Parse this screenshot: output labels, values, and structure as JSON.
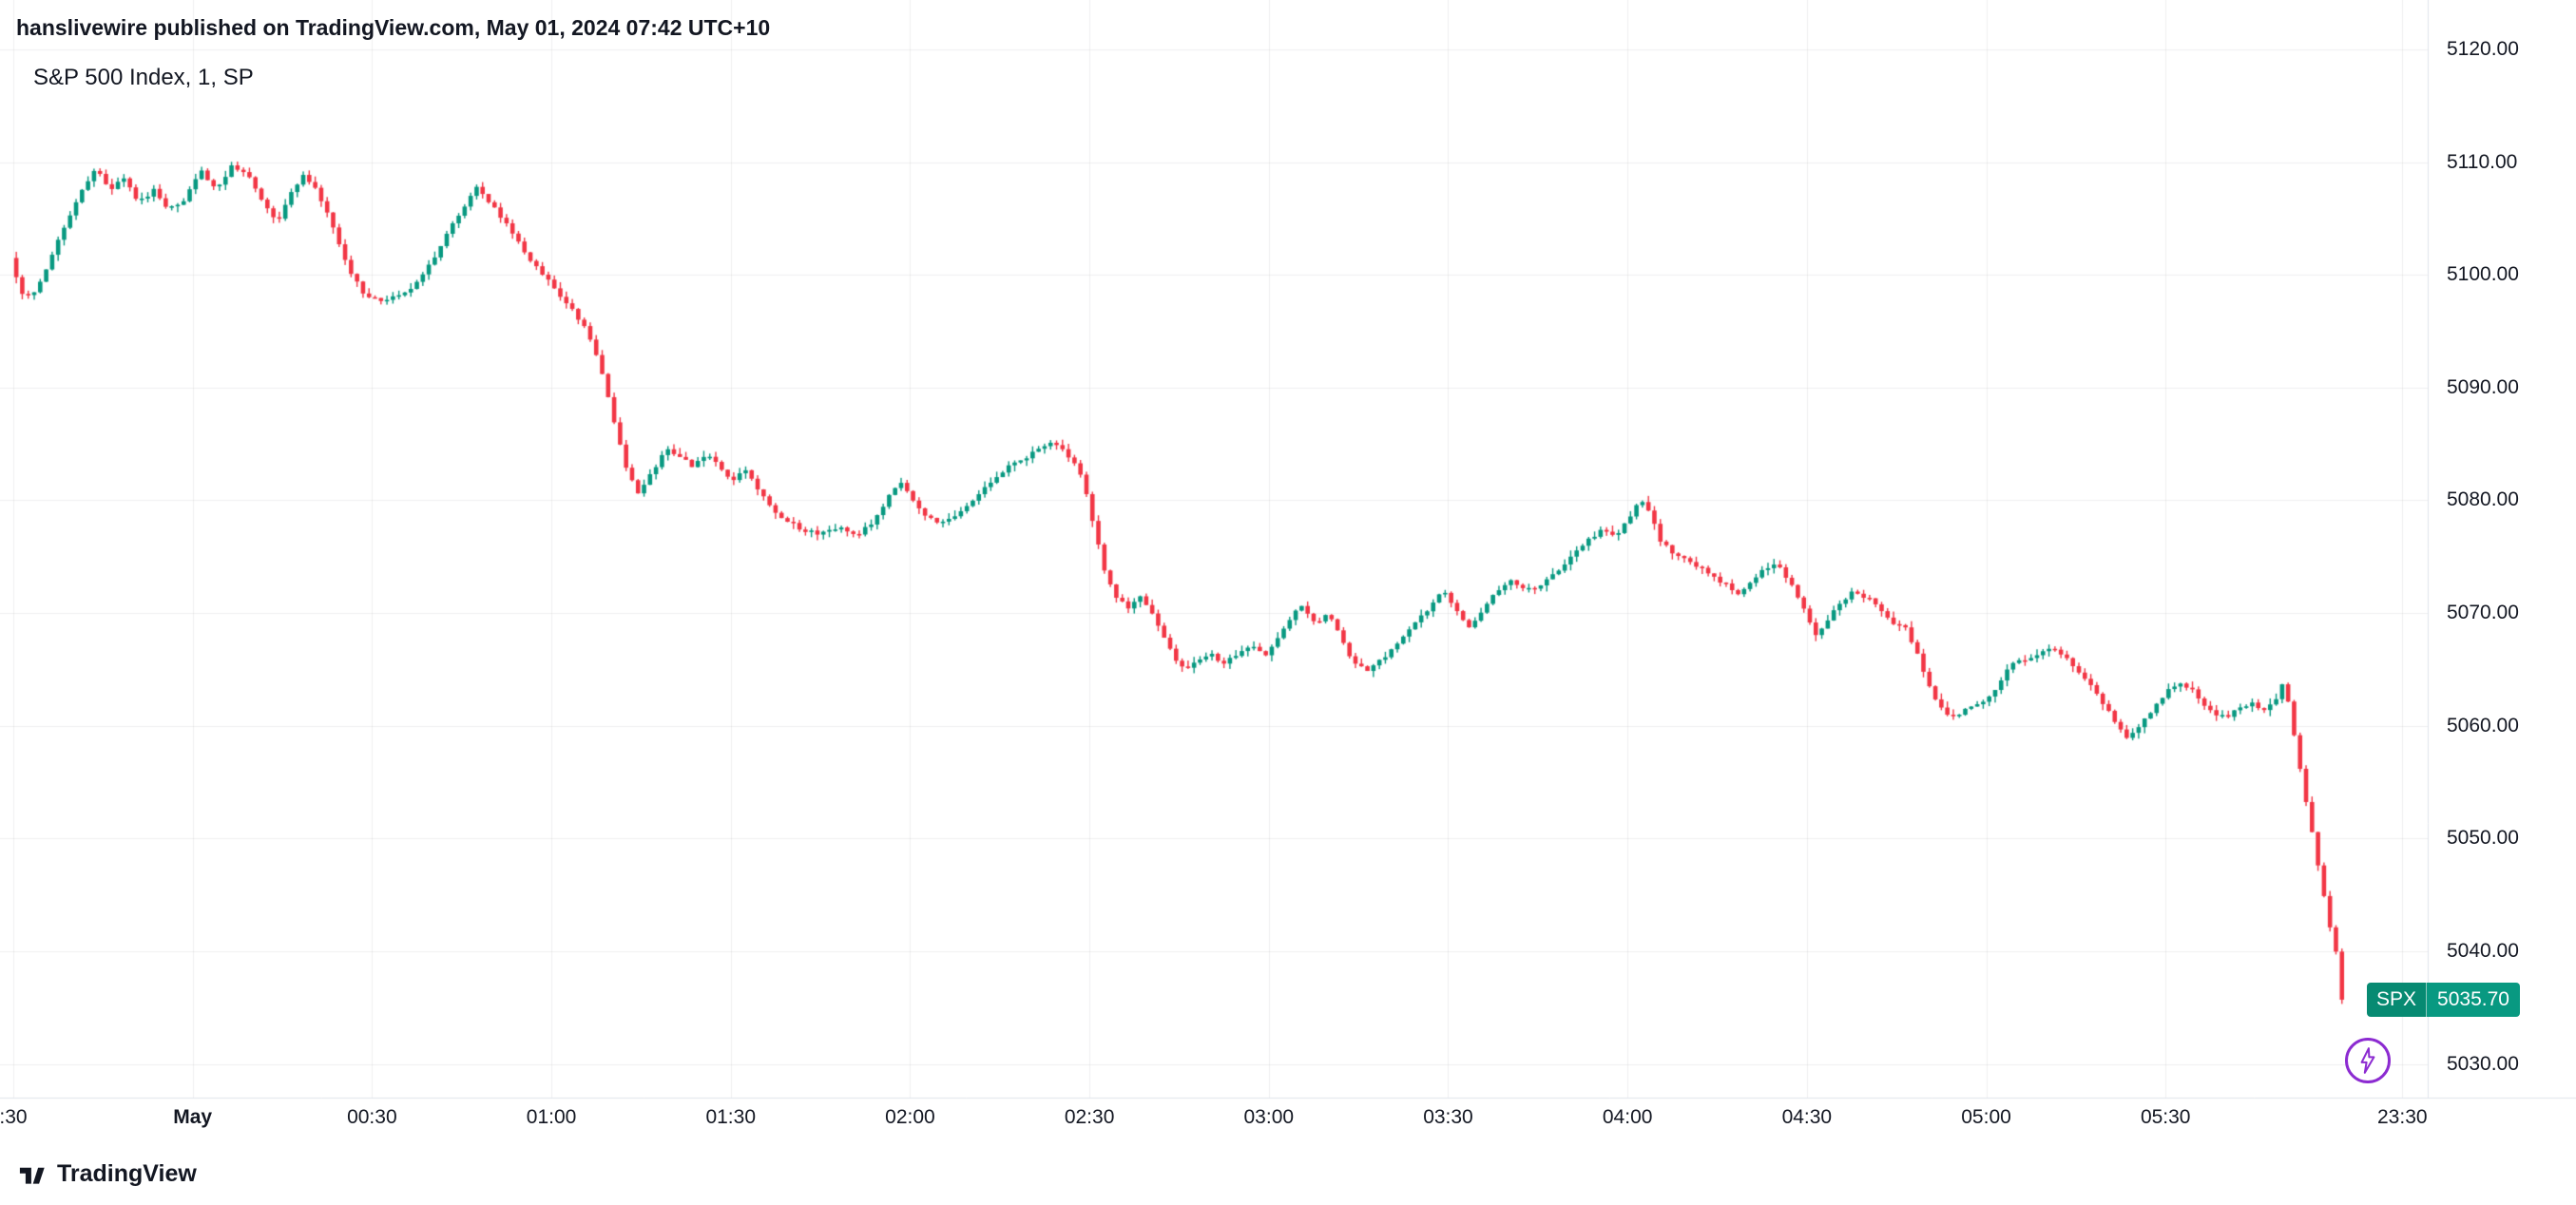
{
  "attribution": "hanslivewire published on TradingView.com, May 01, 2024 07:42 UTC+10",
  "symbol_title": "S&P 500 Index, 1, SP",
  "price_badge": {
    "symbol": "SPX",
    "price": "5035.70"
  },
  "footer": {
    "brand": "TradingView"
  },
  "colors": {
    "up": "#089981",
    "down": "#f23645",
    "badge_green": "#089981",
    "badge_symbol_bg": "#078a72",
    "accent_purple": "#8c2bd1",
    "grid": "rgba(42,46,57,0.07)",
    "axis_line": "#e0e3eb",
    "text": "#131722"
  },
  "chart_data": {
    "type": "candlestick",
    "title": "S&P 500 Index, 1, SP",
    "symbol": "SPX",
    "exchange": "SP",
    "interval_minutes": 1,
    "last_price": 5035.7,
    "last_price_label": "5035.70",
    "session": "23:30 to 06:00 UTC+10 (Apr 30 - May 01, 2024)",
    "grid": true,
    "y_axis": {
      "min": 5030,
      "max": 5120,
      "step": 10,
      "labels": [
        "5120.00",
        "5110.00",
        "5100.00",
        "5090.00",
        "5080.00",
        "5070.00",
        "5060.00",
        "5050.00",
        "5040.00",
        "5030.00"
      ]
    },
    "x_axis": {
      "labels": [
        {
          "text": ":30",
          "t": 0
        },
        {
          "text": "May",
          "t": 30,
          "bold": true
        },
        {
          "text": "00:30",
          "t": 60
        },
        {
          "text": "01:00",
          "t": 90
        },
        {
          "text": "01:30",
          "t": 120
        },
        {
          "text": "02:00",
          "t": 150
        },
        {
          "text": "02:30",
          "t": 180
        },
        {
          "text": "03:00",
          "t": 210
        },
        {
          "text": "03:30",
          "t": 240
        },
        {
          "text": "04:00",
          "t": 270
        },
        {
          "text": "04:30",
          "t": 300
        },
        {
          "text": "05:00",
          "t": 330
        },
        {
          "text": "05:30",
          "t": 360
        },
        {
          "text": "23:30",
          "t": 399.6
        }
      ]
    },
    "price_path": [
      [
        0,
        5101.5
      ],
      [
        1.7,
        5098.5
      ],
      [
        3.3,
        5098.0
      ],
      [
        5.5,
        5100.0
      ],
      [
        8.3,
        5103.5
      ],
      [
        11,
        5106.5
      ],
      [
        14.3,
        5109.6
      ],
      [
        16.5,
        5107.5
      ],
      [
        18.7,
        5108.8
      ],
      [
        21.5,
        5106.5
      ],
      [
        24,
        5107.5
      ],
      [
        26.2,
        5105.8
      ],
      [
        28.9,
        5106.5
      ],
      [
        32,
        5109.3
      ],
      [
        34.4,
        5107.6
      ],
      [
        37.2,
        5109.8
      ],
      [
        39.9,
        5108.8
      ],
      [
        42.7,
        5106.0
      ],
      [
        44.6,
        5104.6
      ],
      [
        46.8,
        5107.0
      ],
      [
        48.8,
        5108.8
      ],
      [
        51.2,
        5107.5
      ],
      [
        53.7,
        5104.5
      ],
      [
        56.5,
        5100.5
      ],
      [
        59.2,
        5098.2
      ],
      [
        62,
        5097.6
      ],
      [
        64.7,
        5098.3
      ],
      [
        67.5,
        5099.0
      ],
      [
        70.2,
        5101.0
      ],
      [
        73,
        5103.5
      ],
      [
        75.8,
        5106.0
      ],
      [
        78,
        5107.8
      ],
      [
        80.4,
        5106.3
      ],
      [
        83.2,
        5104.3
      ],
      [
        86,
        5102.0
      ],
      [
        88.7,
        5100.2
      ],
      [
        91.5,
        5098.5
      ],
      [
        94.2,
        5096.8
      ],
      [
        96.4,
        5095.0
      ],
      [
        98.6,
        5092.0
      ],
      [
        100.8,
        5087.5
      ],
      [
        103,
        5083.0
      ],
      [
        105.2,
        5080.5
      ],
      [
        107.4,
        5082.5
      ],
      [
        109.6,
        5084.5
      ],
      [
        111.8,
        5084.0
      ],
      [
        114,
        5083.0
      ],
      [
        116.2,
        5084.0
      ],
      [
        118.4,
        5083.2
      ],
      [
        120.6,
        5081.8
      ],
      [
        122.8,
        5082.8
      ],
      [
        125,
        5081.0
      ],
      [
        127.2,
        5079.5
      ],
      [
        129.4,
        5078.3
      ],
      [
        132.2,
        5077.5
      ],
      [
        134.9,
        5077.0
      ],
      [
        138.3,
        5077.6
      ],
      [
        141.6,
        5076.9
      ],
      [
        144.4,
        5078.0
      ],
      [
        147.1,
        5080.5
      ],
      [
        148.8,
        5081.5
      ],
      [
        151,
        5080.0
      ],
      [
        153.2,
        5078.6
      ],
      [
        155.4,
        5077.9
      ],
      [
        157.6,
        5078.5
      ],
      [
        159.8,
        5079.3
      ],
      [
        162,
        5080.5
      ],
      [
        164.2,
        5081.8
      ],
      [
        167,
        5083.0
      ],
      [
        169.7,
        5083.8
      ],
      [
        171.9,
        5084.6
      ],
      [
        174.1,
        5085.0
      ],
      [
        176.3,
        5084.3
      ],
      [
        178,
        5083.3
      ],
      [
        179.6,
        5081.5
      ],
      [
        181.3,
        5077.5
      ],
      [
        182.9,
        5074.0
      ],
      [
        184.6,
        5071.8
      ],
      [
        186.8,
        5070.3
      ],
      [
        189,
        5071.3
      ],
      [
        191.2,
        5069.8
      ],
      [
        193.4,
        5067.5
      ],
      [
        195.6,
        5065.0
      ],
      [
        197.8,
        5065.5
      ],
      [
        200.6,
        5066.3
      ],
      [
        203.3,
        5065.6
      ],
      [
        205.5,
        5066.5
      ],
      [
        207.7,
        5067.2
      ],
      [
        209.9,
        5066.3
      ],
      [
        212.1,
        5068.0
      ],
      [
        214.3,
        5069.8
      ],
      [
        216,
        5070.5
      ],
      [
        218.2,
        5069.0
      ],
      [
        220.4,
        5070.0
      ],
      [
        222.6,
        5067.8
      ],
      [
        224.8,
        5065.5
      ],
      [
        227,
        5064.8
      ],
      [
        229.2,
        5065.8
      ],
      [
        231.4,
        5067.0
      ],
      [
        233.6,
        5068.3
      ],
      [
        235.8,
        5069.5
      ],
      [
        238,
        5071.0
      ],
      [
        239.7,
        5072.0
      ],
      [
        241.9,
        5070.3
      ],
      [
        244.1,
        5068.8
      ],
      [
        246.3,
        5070.3
      ],
      [
        248.5,
        5071.8
      ],
      [
        250.7,
        5073.0
      ],
      [
        252.9,
        5072.3
      ],
      [
        255.1,
        5072.0
      ],
      [
        257.3,
        5073.0
      ],
      [
        259.5,
        5074.2
      ],
      [
        261.7,
        5075.3
      ],
      [
        263.9,
        5076.5
      ],
      [
        266.1,
        5077.3
      ],
      [
        268.3,
        5076.8
      ],
      [
        270.5,
        5078.3
      ],
      [
        272.7,
        5080.0
      ],
      [
        274.4,
        5079.0
      ],
      [
        276,
        5076.5
      ],
      [
        278.2,
        5075.2
      ],
      [
        280.4,
        5074.8
      ],
      [
        282.6,
        5074.0
      ],
      [
        284.8,
        5073.3
      ],
      [
        287,
        5072.5
      ],
      [
        289.2,
        5071.7
      ],
      [
        291.4,
        5072.8
      ],
      [
        293.7,
        5074.0
      ],
      [
        295.9,
        5074.3
      ],
      [
        298.1,
        5072.3
      ],
      [
        300.3,
        5070.0
      ],
      [
        301.9,
        5067.8
      ],
      [
        303.6,
        5068.8
      ],
      [
        305.8,
        5070.8
      ],
      [
        308,
        5071.8
      ],
      [
        310.2,
        5071.5
      ],
      [
        312.4,
        5070.5
      ],
      [
        314.6,
        5069.0
      ],
      [
        316.8,
        5068.8
      ],
      [
        319,
        5066.5
      ],
      [
        320.7,
        5063.8
      ],
      [
        322.3,
        5061.8
      ],
      [
        324.5,
        5060.8
      ],
      [
        326.7,
        5061.3
      ],
      [
        329,
        5061.8
      ],
      [
        331.2,
        5062.5
      ],
      [
        332.8,
        5064.0
      ],
      [
        335,
        5065.5
      ],
      [
        337.2,
        5066.0
      ],
      [
        339.4,
        5066.3
      ],
      [
        341.6,
        5066.8
      ],
      [
        343.8,
        5066.0
      ],
      [
        346,
        5064.8
      ],
      [
        348.2,
        5063.5
      ],
      [
        350.4,
        5061.8
      ],
      [
        352.6,
        5060.0
      ],
      [
        354.3,
        5058.9
      ],
      [
        355.9,
        5059.8
      ],
      [
        358.1,
        5061.3
      ],
      [
        360.3,
        5062.8
      ],
      [
        362.5,
        5063.8
      ],
      [
        364.7,
        5063.3
      ],
      [
        366.4,
        5062.3
      ],
      [
        368.6,
        5061.0
      ],
      [
        370.8,
        5060.9
      ],
      [
        373,
        5061.5
      ],
      [
        375.2,
        5062.0
      ],
      [
        377.4,
        5061.3
      ],
      [
        379.1,
        5062.5
      ],
      [
        380.2,
        5064.0
      ],
      [
        381.3,
        5061.5
      ],
      [
        382.4,
        5058.0
      ],
      [
        383.5,
        5054.5
      ],
      [
        384.6,
        5051.5
      ],
      [
        385.7,
        5048.5
      ],
      [
        386.8,
        5045.5
      ],
      [
        387.9,
        5042.5
      ],
      [
        389,
        5040.0
      ],
      [
        390,
        5035.7
      ]
    ]
  }
}
